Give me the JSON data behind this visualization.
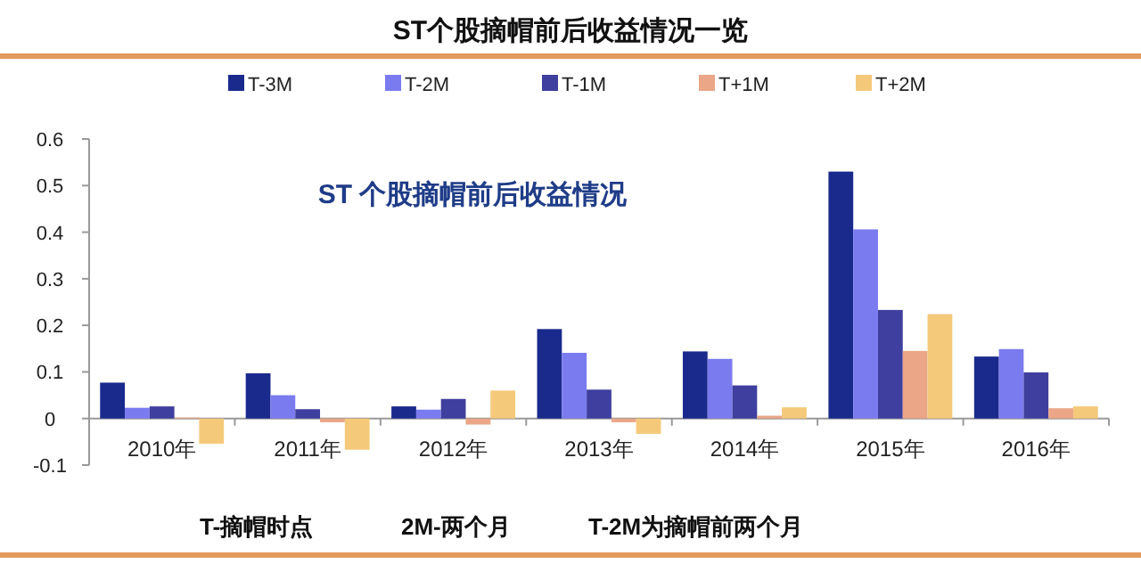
{
  "chart_data": {
    "type": "bar",
    "title": "ST个股摘帽前后收益情况一览",
    "categories": [
      "2010年",
      "2011年",
      "2012年",
      "2013年",
      "2014年",
      "2015年",
      "2016年"
    ],
    "series": [
      {
        "name": "T-3M",
        "color": "#1a2a8c",
        "values": [
          0.077,
          0.097,
          0.026,
          0.192,
          0.144,
          0.53,
          0.133
        ]
      },
      {
        "name": "T-2M",
        "color": "#7b7bf0",
        "values": [
          0.023,
          0.05,
          0.019,
          0.141,
          0.128,
          0.406,
          0.149
        ]
      },
      {
        "name": "T-1M",
        "color": "#3f3f9f",
        "values": [
          0.026,
          0.02,
          0.042,
          0.062,
          0.071,
          0.233,
          0.099
        ]
      },
      {
        "name": "T+1M",
        "color": "#eaa687",
        "values": [
          0.002,
          -0.008,
          -0.013,
          -0.008,
          0.006,
          0.145,
          0.022
        ]
      },
      {
        "name": "T+2M",
        "color": "#f5c97a",
        "values": [
          -0.054,
          -0.067,
          0.06,
          -0.033,
          0.024,
          0.224,
          0.026
        ]
      }
    ],
    "ylim": [
      -0.1,
      0.6
    ],
    "yticks": [
      {
        "value": -0.1,
        "label": "-0.1"
      },
      0,
      0.1,
      0.2,
      0.3,
      0.4,
      0.5,
      0.6
    ],
    "grid": false,
    "legend": "top",
    "annotations": [
      "ST 个股摘帽前后收益情况",
      "T-摘帽时点",
      "2M-两个月",
      "T-2M为摘帽前两个月"
    ]
  }
}
